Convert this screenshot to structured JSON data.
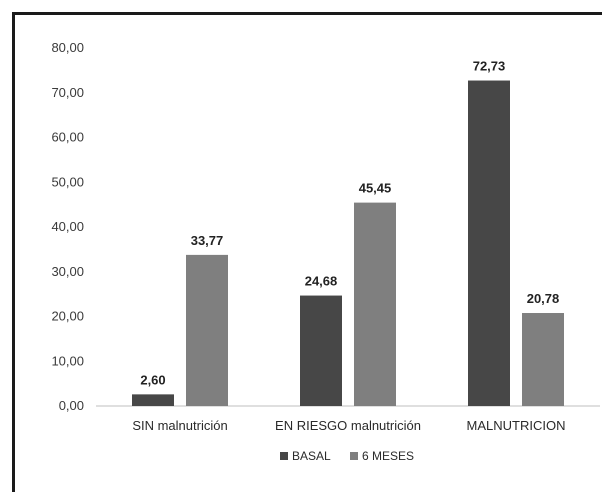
{
  "chart_data": {
    "type": "bar",
    "categories": [
      "SIN malnutrición",
      "EN RIESGO malnutrición",
      "MALNUTRICION"
    ],
    "series": [
      {
        "name": "BASAL",
        "values": [
          2.6,
          24.68,
          72.73
        ],
        "labels": [
          "2,60",
          "24,68",
          "72,73"
        ],
        "color": "#474747"
      },
      {
        "name": "6 MESES",
        "values": [
          33.77,
          45.45,
          20.78
        ],
        "labels": [
          "33,77",
          "45,45",
          "20,78"
        ],
        "color": "#7f7f7f"
      }
    ],
    "yticks": [
      0,
      10,
      20,
      30,
      40,
      50,
      60,
      70,
      80
    ],
    "ytick_labels": [
      "0,00",
      "10,00",
      "20,00",
      "30,00",
      "40,00",
      "50,00",
      "60,00",
      "70,00",
      "80,00"
    ],
    "ylim": [
      0,
      80
    ],
    "grid": false,
    "legend_position": "bottom"
  }
}
